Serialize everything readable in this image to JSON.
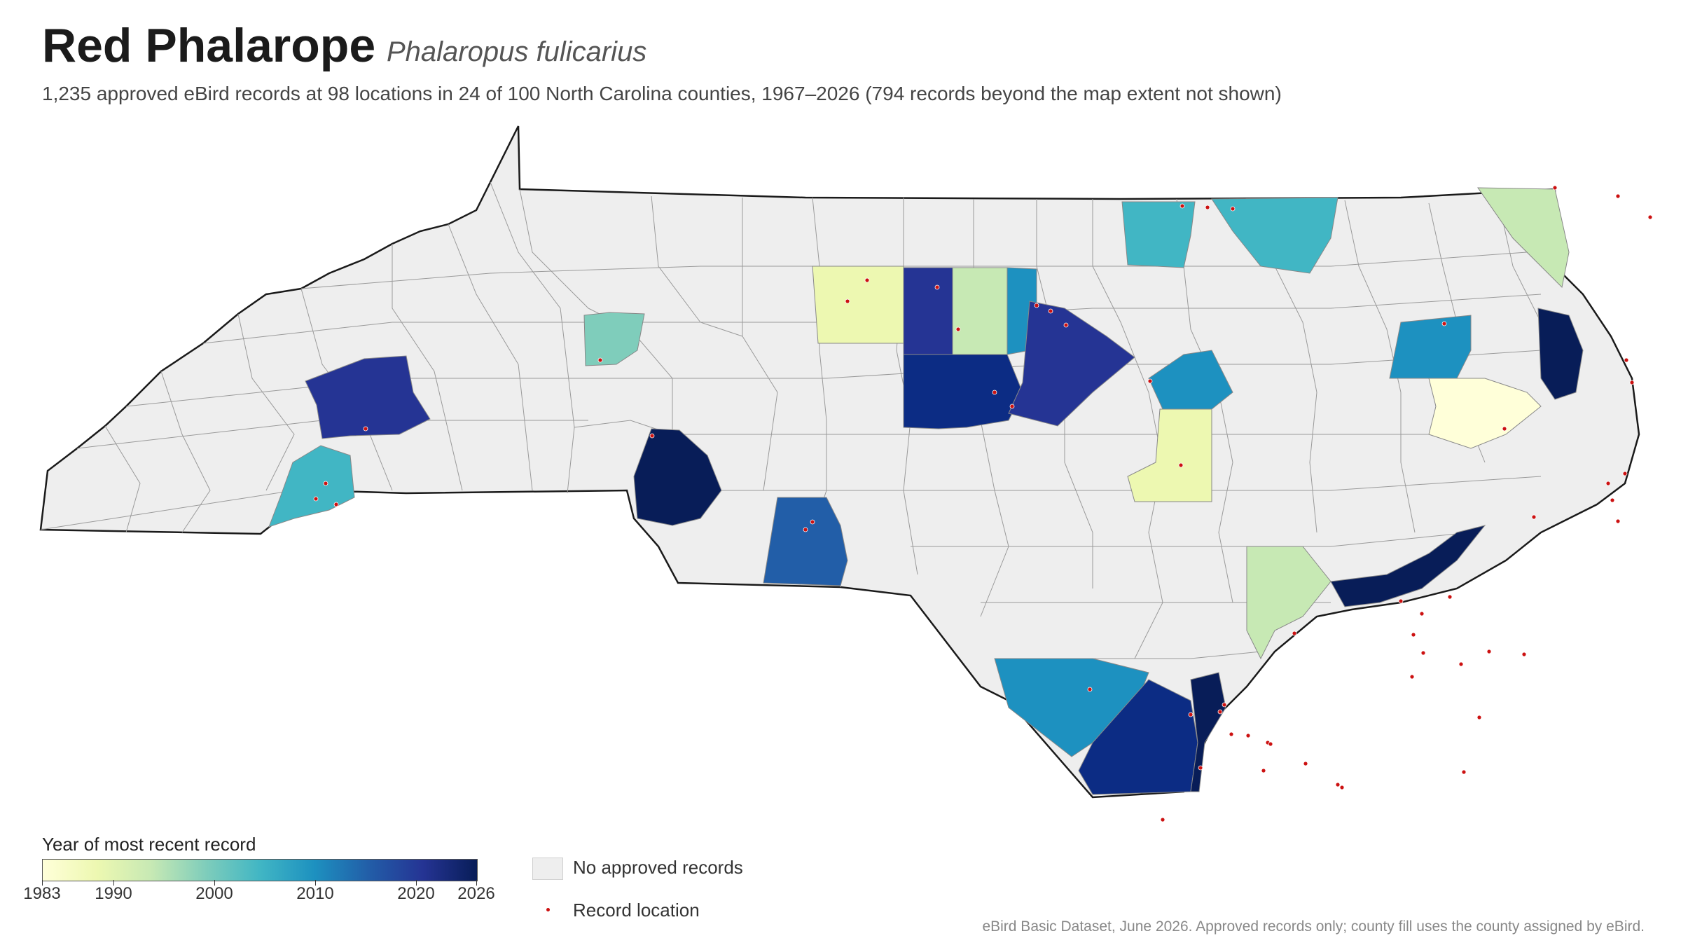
{
  "header": {
    "title": "Red Phalarope",
    "scientific_name": "Phalaropus fulicarius",
    "subtitle": "1,235 approved eBird records at 98 locations in 24 of 100 North Carolina counties, 1967–2026 (794 records beyond the map extent not shown)"
  },
  "legend": {
    "title": "Year of most recent record",
    "ticks": [
      "1983",
      "1990",
      "2000",
      "2010",
      "2020",
      "2026"
    ],
    "no_records_label": "No approved records",
    "record_location_label": "Record location",
    "colors": {
      "no_records": "#eeeeee",
      "record_dot": "#cc1111",
      "scale": [
        "#ffffd9",
        "#edf8b1",
        "#c7e9b4",
        "#7fcdbb",
        "#41b6c4",
        "#1d91c0",
        "#225ea8",
        "#253494",
        "#081d58"
      ]
    }
  },
  "footer": {
    "source": "eBird Basic Dataset, June 2026. Approved records only; county fill uses the county assigned by eBird."
  }
}
